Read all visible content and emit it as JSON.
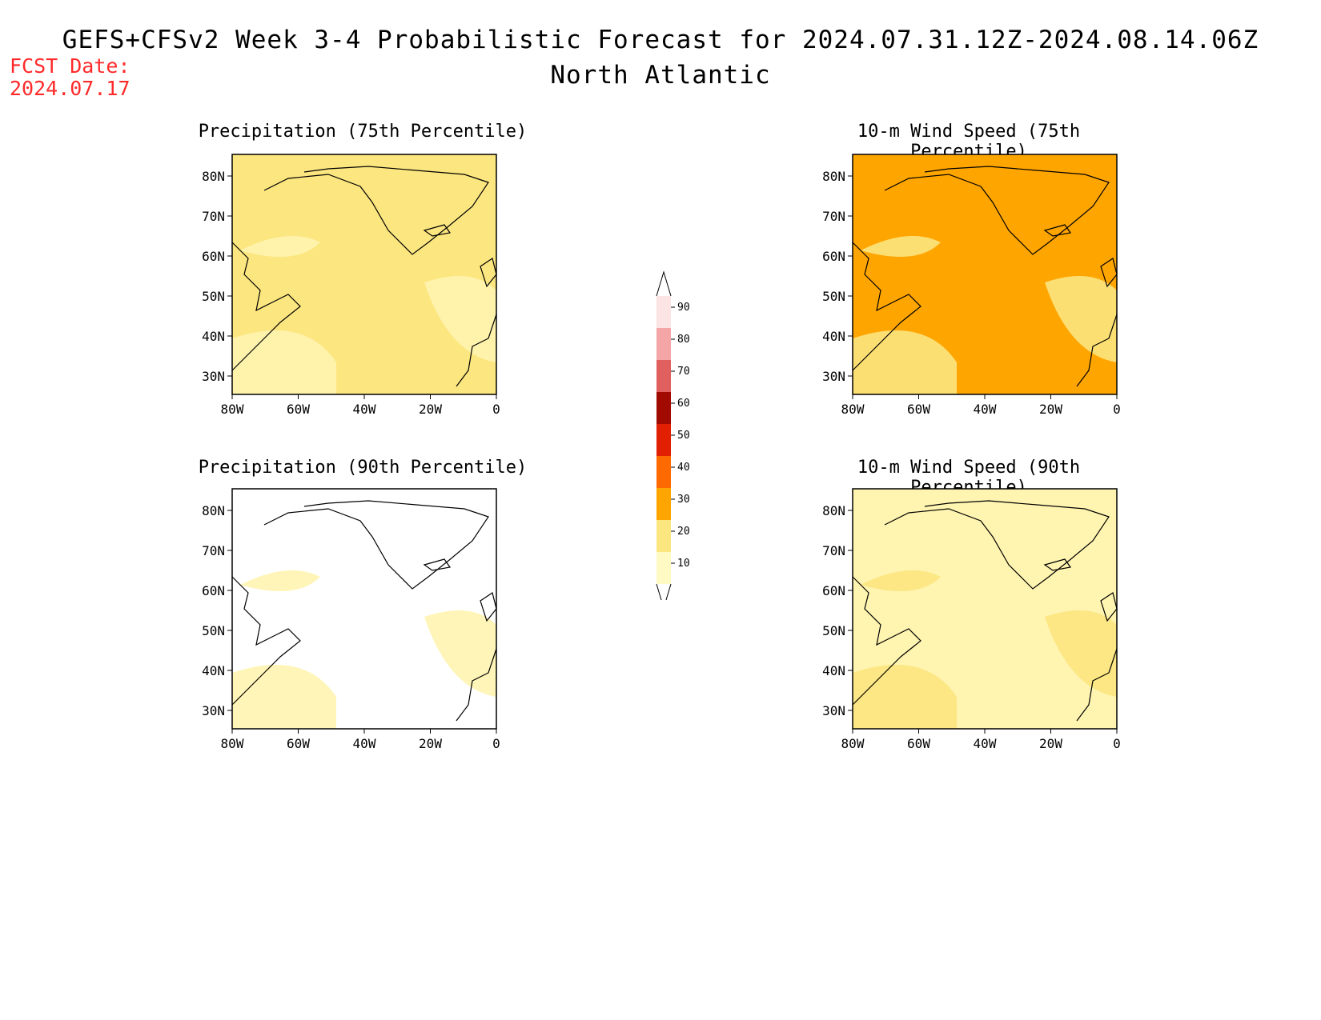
{
  "header": {
    "title": "GEFS+CFSv2 Week 3-4 Probabilistic Forecast for 2024.07.31.12Z-2024.08.14.06Z",
    "subtitle": "North Atlantic",
    "fcst_label": "FCST Date:",
    "fcst_date": "2024.07.17"
  },
  "axes": {
    "lat_ticks": [
      "80N",
      "70N",
      "60N",
      "50N",
      "40N",
      "30N"
    ],
    "lon_ticks": [
      "80W",
      "60W",
      "40W",
      "20W",
      "0"
    ]
  },
  "panels": [
    {
      "title": "Precipitation (75th Percentile)",
      "background_color": "#fce680",
      "accent_color": "#fff4b0"
    },
    {
      "title": "10-m Wind Speed (75th Percentile)",
      "background_color": "#ffa500",
      "accent_color": "#fce680"
    },
    {
      "title": "Precipitation (90th Percentile)",
      "background_color": "#ffffff",
      "accent_color": "#fff4b0"
    },
    {
      "title": "10-m Wind Speed (90th Percentile)",
      "background_color": "#fff4b0",
      "accent_color": "#fce680"
    }
  ],
  "colorbar": {
    "levels": [
      "10",
      "20",
      "30",
      "40",
      "50",
      "60",
      "70",
      "80",
      "90"
    ],
    "colors": [
      "#fff9c4",
      "#fce680",
      "#ffa500",
      "#ff6a00",
      "#e02000",
      "#a00a00",
      "#e06060",
      "#f4a6a6",
      "#fde4e4"
    ]
  }
}
